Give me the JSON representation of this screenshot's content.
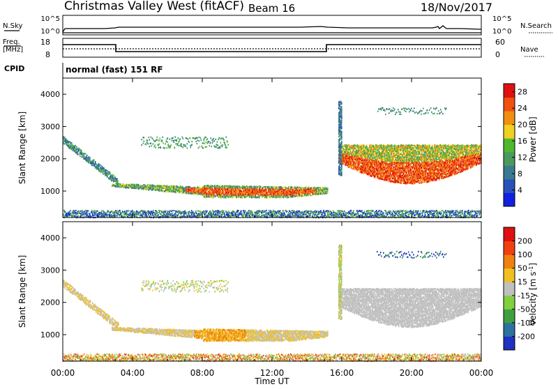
{
  "header": {
    "station": "Christmas Valley West (fitACF)",
    "beam": "Beam 16",
    "date": "18/Nov/2017"
  },
  "noise_panel": {
    "left_label": "N.Sky",
    "right_label": "N.Search",
    "left_ticks": [
      "10^5",
      "10^0"
    ],
    "right_ticks": [
      "10^5",
      "10^0"
    ]
  },
  "freq_panel": {
    "left_label_1": "Freq.",
    "left_label_2": "[MHz]",
    "right_label": "Nave",
    "left_ticks": [
      "18",
      "8"
    ],
    "right_ticks": [
      "60",
      "0"
    ]
  },
  "cpid": {
    "label": "CPID",
    "mode": "normal (fast) 151 RF"
  },
  "chart_data": [
    {
      "type": "heatmap",
      "title": "",
      "ylabel": "Slant Range [km]",
      "xlabel": "",
      "x_range": [
        "00:00",
        "24:00"
      ],
      "ylim": [
        180,
        4500
      ],
      "yticks": [
        "1000",
        "2000",
        "3000",
        "4000"
      ],
      "colorbar": {
        "label": "Power [dB]",
        "ticks": [
          "4",
          "8",
          "12",
          "16",
          "20",
          "24",
          "28"
        ],
        "range": [
          0,
          30
        ],
        "colors": [
          "#1020e0",
          "#2850b8",
          "#3a7a90",
          "#4a9a60",
          "#50b830",
          "#f0d020",
          "#f09010",
          "#f05010",
          "#e01010"
        ]
      }
    },
    {
      "type": "heatmap",
      "title": "",
      "ylabel": "Slant Range [km]",
      "xlabel": "Time UT",
      "x_range": [
        "00:00",
        "24:00"
      ],
      "ylim": [
        180,
        4500
      ],
      "yticks": [
        "1000",
        "2000",
        "3000",
        "4000"
      ],
      "xticks": [
        "00:00",
        "04:00",
        "08:00",
        "12:00",
        "16:00",
        "20:00",
        "00:00"
      ],
      "colorbar": {
        "label": "Velocity [m s",
        "label_sup": "-1",
        "label_end": "]",
        "ticks": [
          "200",
          "100",
          "50",
          "15",
          "-15",
          "-50",
          "-100",
          "-200"
        ],
        "colors": [
          "#2030c0",
          "#3070a0",
          "#40a040",
          "#80d040",
          "#c0c0c0",
          "#f0c020",
          "#f08010",
          "#f04010",
          "#e01010"
        ]
      }
    }
  ]
}
